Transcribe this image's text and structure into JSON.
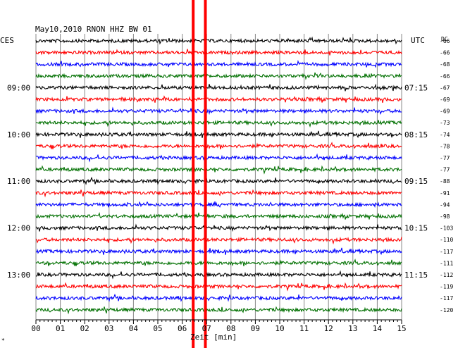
{
  "chart_data": {
    "type": "line",
    "title": "May10,2010  RNON HHZ BW 01",
    "left_zone": "CES",
    "right_zone": "UTC",
    "dc_header": "DC",
    "xlabel": "Zeit [min]",
    "xlim": [
      0,
      15
    ],
    "x_ticks": [
      "00",
      "01",
      "02",
      "03",
      "04",
      "05",
      "06",
      "07",
      "08",
      "09",
      "10",
      "11",
      "12",
      "13",
      "14",
      "15"
    ],
    "trace_colors": [
      "#000000",
      "#ff0000",
      "#0000ff",
      "#007000"
    ],
    "left_time_labels": [
      {
        "row": 4,
        "text": "09:00"
      },
      {
        "row": 8,
        "text": "10:00"
      },
      {
        "row": 12,
        "text": "11:00"
      },
      {
        "row": 16,
        "text": "12:00"
      },
      {
        "row": 20,
        "text": "13:00"
      }
    ],
    "right_time_labels": [
      {
        "row": 4,
        "text": "07:15"
      },
      {
        "row": 8,
        "text": "08:15"
      },
      {
        "row": 12,
        "text": "09:15"
      },
      {
        "row": 16,
        "text": "10:15"
      },
      {
        "row": 20,
        "text": "11:15"
      }
    ],
    "dc_offsets": [
      "-66",
      "-66",
      "-68",
      "-66",
      "-67",
      "-69",
      "-69",
      "-73",
      "-74",
      "-78",
      "-77",
      "-77",
      "-88",
      "-91",
      "-94",
      "-98",
      "-103",
      "-110",
      "-117",
      "-111",
      "-112",
      "-119",
      "-117",
      "-120"
    ],
    "event_markers_min": [
      6.45,
      6.95
    ],
    "marker_color": "#ff0000"
  }
}
